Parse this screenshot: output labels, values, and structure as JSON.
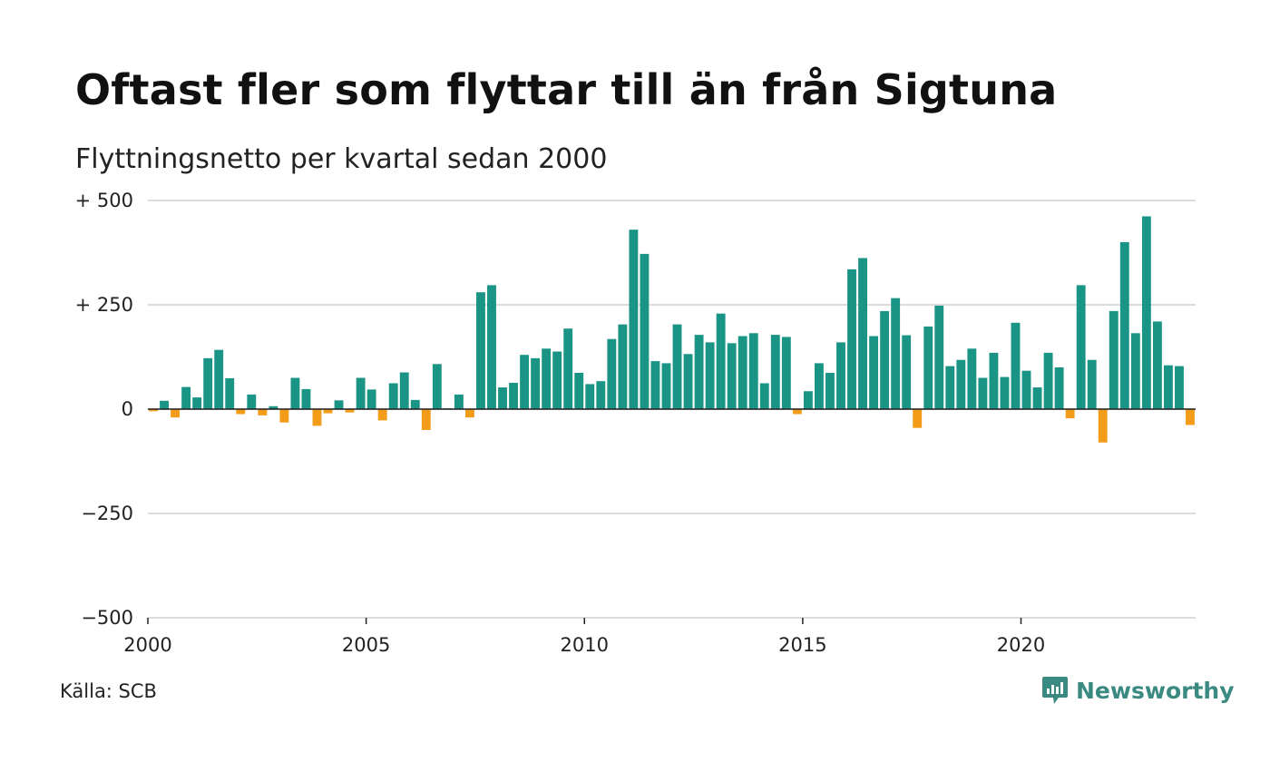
{
  "title": "Oftast fler som flyttar till än från Sigtuna",
  "subtitle": "Flyttningsnetto per kvartal sedan 2000",
  "source": "Källa: SCB",
  "brand": {
    "name": "Newsworthy",
    "icon": "newsworthy-logo-icon",
    "color": "#3a8a82"
  },
  "colors": {
    "positive": "#1a9485",
    "negative": "#f39c1a",
    "grid": "#dcdcdc",
    "zero": "#222222"
  },
  "chart_data": {
    "type": "bar",
    "title": "Oftast fler som flyttar till än från Sigtuna",
    "subtitle": "Flyttningsnetto per kvartal sedan 2000",
    "xlabel": "",
    "ylabel": "",
    "ylim": [
      -500,
      500
    ],
    "yticks": [
      500,
      250,
      0,
      -250,
      -500
    ],
    "ytick_labels": [
      "+ 500",
      "+ 250",
      "0",
      "−250",
      "−500"
    ],
    "xticks": [
      "2000",
      "2005",
      "2010",
      "2015",
      "2020"
    ],
    "grid": true,
    "start": "2000 Q1",
    "frequency": "quarterly",
    "values": [
      -5,
      20,
      -20,
      53,
      28,
      122,
      142,
      74,
      -12,
      35,
      -15,
      7,
      -32,
      75,
      48,
      -40,
      -10,
      21,
      -8,
      75,
      47,
      -27,
      62,
      88,
      22,
      -50,
      108,
      2,
      35,
      -20,
      280,
      297,
      52,
      63,
      130,
      122,
      145,
      138,
      193,
      87,
      60,
      67,
      168,
      203,
      430,
      372,
      115,
      110,
      203,
      132,
      178,
      160,
      229,
      158,
      175,
      182,
      62,
      178,
      173,
      -12,
      43,
      110,
      87,
      160,
      335,
      362,
      175,
      235,
      266,
      177,
      -45,
      198,
      248,
      103,
      118,
      145,
      75,
      135,
      77,
      207,
      92,
      52,
      135,
      100,
      -22,
      297,
      118,
      -80,
      235,
      400,
      182,
      462,
      210,
      105,
      103,
      -38
    ]
  }
}
